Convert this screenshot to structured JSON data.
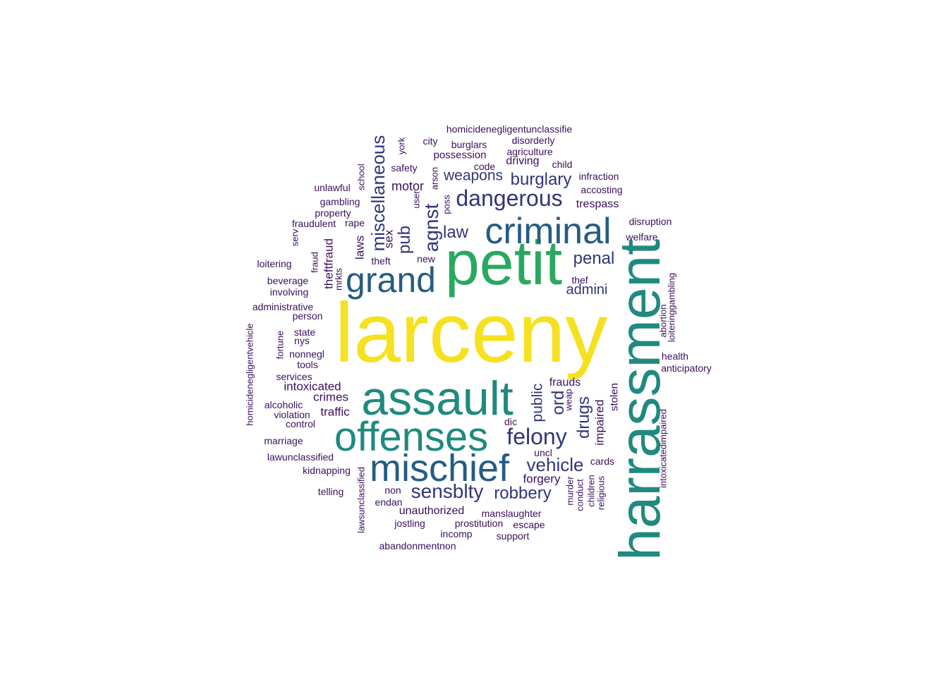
{
  "word_cloud": {
    "colors": {
      "yellow": "#f5e11f",
      "green": "#2aa861",
      "teal": "#1f8a7d",
      "blue": "#255c83",
      "navy": "#31357a",
      "dark": "#3b0f5c"
    },
    "words": [
      {
        "text": "larceny",
        "color": "yellow",
        "vertical": false
      },
      {
        "text": "petit",
        "color": "green",
        "vertical": false
      },
      {
        "text": "harrassment",
        "color": "teal",
        "vertical": true
      },
      {
        "text": "assault",
        "color": "teal",
        "vertical": false
      },
      {
        "text": "offenses",
        "color": "teal",
        "vertical": false
      },
      {
        "text": "mischief",
        "color": "blue",
        "vertical": false
      },
      {
        "text": "criminal",
        "color": "blue",
        "vertical": false
      },
      {
        "text": "grand",
        "color": "blue",
        "vertical": false
      },
      {
        "text": "dangerous",
        "color": "navy",
        "vertical": false
      },
      {
        "text": "felony",
        "color": "navy",
        "vertical": false
      },
      {
        "text": "sensblty",
        "color": "navy",
        "vertical": false
      },
      {
        "text": "miscellaneous",
        "color": "navy",
        "vertical": true
      },
      {
        "text": "agnst",
        "color": "navy",
        "vertical": true
      },
      {
        "text": "vehicle",
        "color": "navy",
        "vertical": false
      },
      {
        "text": "robbery",
        "color": "navy",
        "vertical": false
      },
      {
        "text": "burglary",
        "color": "navy",
        "vertical": false
      },
      {
        "text": "drugs",
        "color": "navy",
        "vertical": true
      },
      {
        "text": "pub",
        "color": "navy",
        "vertical": true
      },
      {
        "text": "law",
        "color": "navy",
        "vertical": false
      },
      {
        "text": "penal",
        "color": "navy",
        "vertical": false
      },
      {
        "text": "ord",
        "color": "navy",
        "vertical": true
      },
      {
        "text": "weapons",
        "color": "navy",
        "vertical": false
      },
      {
        "text": "public",
        "color": "navy",
        "vertical": true
      },
      {
        "text": "admini",
        "color": "navy",
        "vertical": false
      },
      {
        "text": "impaired",
        "color": "dark",
        "vertical": true
      },
      {
        "text": "motor",
        "color": "dark",
        "vertical": false
      },
      {
        "text": "laws",
        "color": "dark",
        "vertical": true
      },
      {
        "text": "sex",
        "color": "dark",
        "vertical": true
      },
      {
        "text": "theftfraud",
        "color": "dark",
        "vertical": true
      },
      {
        "text": "crimes",
        "color": "dark",
        "vertical": false
      },
      {
        "text": "traffic",
        "color": "dark",
        "vertical": false
      },
      {
        "text": "intoxicated",
        "color": "dark",
        "vertical": false
      },
      {
        "text": "forgery",
        "color": "dark",
        "vertical": false
      },
      {
        "text": "trespass",
        "color": "dark",
        "vertical": false
      },
      {
        "text": "driving",
        "color": "dark",
        "vertical": false
      },
      {
        "text": "frauds",
        "color": "dark",
        "vertical": false
      },
      {
        "text": "unauthorized",
        "color": "dark",
        "vertical": false
      },
      {
        "text": "stolen",
        "color": "dark",
        "vertical": true
      },
      {
        "text": "homicidenegligentunclassifie",
        "color": "dark",
        "vertical": false
      },
      {
        "text": "burglars",
        "color": "dark",
        "vertical": false
      },
      {
        "text": "disorderly",
        "color": "dark",
        "vertical": false
      },
      {
        "text": "city",
        "color": "dark",
        "vertical": false
      },
      {
        "text": "possession",
        "color": "dark",
        "vertical": false
      },
      {
        "text": "agriculture",
        "color": "dark",
        "vertical": false
      },
      {
        "text": "code",
        "color": "dark",
        "vertical": false
      },
      {
        "text": "child",
        "color": "dark",
        "vertical": false
      },
      {
        "text": "safety",
        "color": "dark",
        "vertical": false
      },
      {
        "text": "infraction",
        "color": "dark",
        "vertical": false
      },
      {
        "text": "accosting",
        "color": "dark",
        "vertical": false
      },
      {
        "text": "unlawful",
        "color": "dark",
        "vertical": false
      },
      {
        "text": "gambling",
        "color": "dark",
        "vertical": false
      },
      {
        "text": "property",
        "color": "dark",
        "vertical": false
      },
      {
        "text": "fraudulent",
        "color": "dark",
        "vertical": false
      },
      {
        "text": "rape",
        "color": "dark",
        "vertical": false
      },
      {
        "text": "disruption",
        "color": "dark",
        "vertical": false
      },
      {
        "text": "welfare",
        "color": "dark",
        "vertical": false
      },
      {
        "text": "loitering",
        "color": "dark",
        "vertical": false
      },
      {
        "text": "theft",
        "color": "dark",
        "vertical": false
      },
      {
        "text": "new",
        "color": "dark",
        "vertical": false
      },
      {
        "text": "beverage",
        "color": "dark",
        "vertical": false
      },
      {
        "text": "involving",
        "color": "dark",
        "vertical": false
      },
      {
        "text": "thef",
        "color": "dark",
        "vertical": false
      },
      {
        "text": "administrative",
        "color": "dark",
        "vertical": false
      },
      {
        "text": "person",
        "color": "dark",
        "vertical": false
      },
      {
        "text": "state",
        "color": "dark",
        "vertical": false
      },
      {
        "text": "nys",
        "color": "dark",
        "vertical": false
      },
      {
        "text": "nonnegl",
        "color": "dark",
        "vertical": false
      },
      {
        "text": "tools",
        "color": "dark",
        "vertical": false
      },
      {
        "text": "services",
        "color": "dark",
        "vertical": false
      },
      {
        "text": "health",
        "color": "dark",
        "vertical": false
      },
      {
        "text": "anticipatory",
        "color": "dark",
        "vertical": false
      },
      {
        "text": "alcoholic",
        "color": "dark",
        "vertical": false
      },
      {
        "text": "violation",
        "color": "dark",
        "vertical": false
      },
      {
        "text": "control",
        "color": "dark",
        "vertical": false
      },
      {
        "text": "dic",
        "color": "dark",
        "vertical": false
      },
      {
        "text": "marriage",
        "color": "dark",
        "vertical": false
      },
      {
        "text": "uncl",
        "color": "dark",
        "vertical": false
      },
      {
        "text": "lawunclassified",
        "color": "dark",
        "vertical": false
      },
      {
        "text": "cards",
        "color": "dark",
        "vertical": false
      },
      {
        "text": "kidnapping",
        "color": "dark",
        "vertical": false
      },
      {
        "text": "telling",
        "color": "dark",
        "vertical": false
      },
      {
        "text": "non",
        "color": "dark",
        "vertical": false
      },
      {
        "text": "endan",
        "color": "dark",
        "vertical": false
      },
      {
        "text": "manslaughter",
        "color": "dark",
        "vertical": false
      },
      {
        "text": "jostling",
        "color": "dark",
        "vertical": false
      },
      {
        "text": "prostitution",
        "color": "dark",
        "vertical": false
      },
      {
        "text": "escape",
        "color": "dark",
        "vertical": false
      },
      {
        "text": "incomp",
        "color": "dark",
        "vertical": false
      },
      {
        "text": "support",
        "color": "dark",
        "vertical": false
      },
      {
        "text": "abandonmentnon",
        "color": "dark",
        "vertical": false
      },
      {
        "text": "york",
        "color": "dark",
        "vertical": true
      },
      {
        "text": "school",
        "color": "dark",
        "vertical": true
      },
      {
        "text": "arson",
        "color": "dark",
        "vertical": true
      },
      {
        "text": "user",
        "color": "dark",
        "vertical": true
      },
      {
        "text": "poss",
        "color": "dark",
        "vertical": true
      },
      {
        "text": "serv",
        "color": "dark",
        "vertical": true
      },
      {
        "text": "fraud",
        "color": "dark",
        "vertical": true
      },
      {
        "text": "mrkts",
        "color": "dark",
        "vertical": true
      },
      {
        "text": "homicidenegligentvehicle",
        "color": "dark",
        "vertical": true
      },
      {
        "text": "fortune",
        "color": "dark",
        "vertical": true
      },
      {
        "text": "lawsunclassified",
        "color": "dark",
        "vertical": true
      },
      {
        "text": "weap",
        "color": "dark",
        "vertical": true
      },
      {
        "text": "murder",
        "color": "dark",
        "vertical": true
      },
      {
        "text": "conduct",
        "color": "dark",
        "vertical": true
      },
      {
        "text": "children",
        "color": "dark",
        "vertical": true
      },
      {
        "text": "religious",
        "color": "dark",
        "vertical": true
      },
      {
        "text": "intoxicatedimpaired",
        "color": "dark",
        "vertical": true
      },
      {
        "text": "loiteringgambling",
        "color": "dark",
        "vertical": true
      },
      {
        "text": "abortion",
        "color": "dark",
        "vertical": true
      }
    ]
  }
}
